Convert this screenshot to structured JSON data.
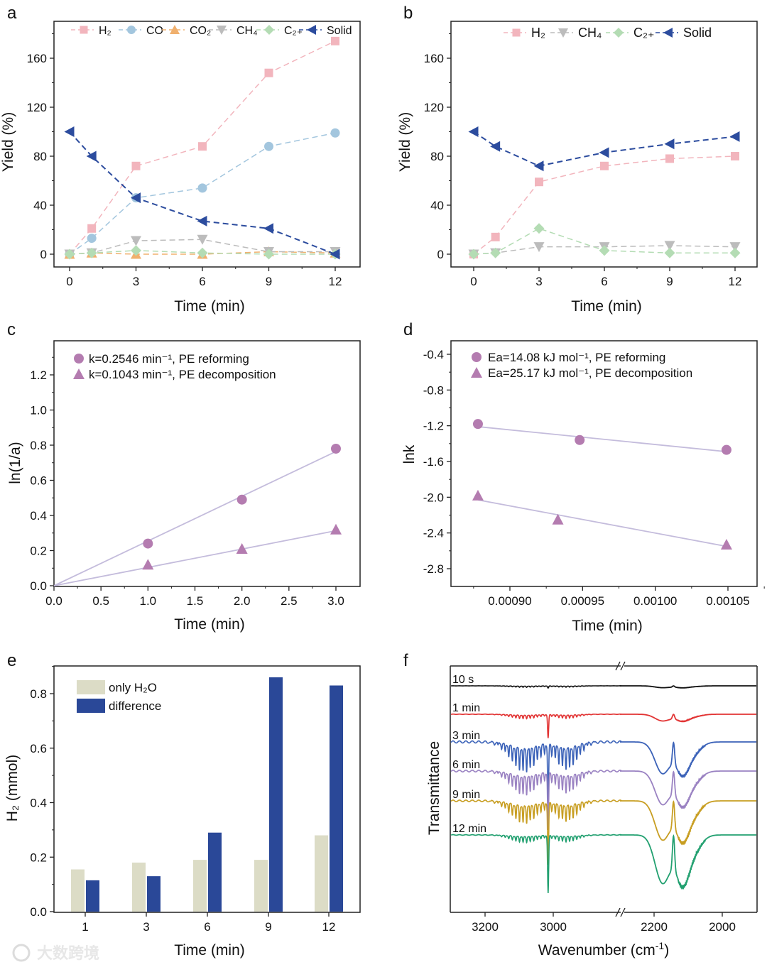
{
  "watermark": "大数跨境",
  "chart_data": [
    {
      "panel": "a",
      "type": "line",
      "xlabel": "Time (min)",
      "ylabel": "Yield (%)",
      "xlim": [
        -0.7,
        13.3
      ],
      "ylim": [
        -10,
        190
      ],
      "x_ticks": [
        0,
        3,
        6,
        9,
        12
      ],
      "x_tick_labels": [
        "0",
        "3",
        "6",
        "9",
        "12"
      ],
      "y_ticks": [
        0,
        40,
        80,
        120,
        160
      ],
      "y_tick_labels": [
        "0",
        "40",
        "80",
        "120",
        "160"
      ],
      "legend": "top",
      "x": [
        0,
        1,
        3,
        6,
        9,
        12
      ],
      "series": [
        {
          "name": "H₂",
          "marker": "square",
          "color": "#f2b5bd",
          "values": [
            0,
            21,
            72,
            88,
            148,
            174
          ]
        },
        {
          "name": "CO",
          "marker": "circle",
          "color": "#a3c6de",
          "values": [
            0,
            13,
            46,
            54,
            88,
            99
          ]
        },
        {
          "name": "CO₂",
          "marker": "triangle-up",
          "color": "#f0b06e",
          "values": [
            0,
            1,
            0,
            0,
            2,
            1
          ]
        },
        {
          "name": "CH₄",
          "marker": "triangle-down",
          "color": "#bcbcbc",
          "values": [
            0,
            1,
            11,
            12,
            2,
            2
          ]
        },
        {
          "name": "C₂₊",
          "marker": "diamond",
          "color": "#b4dcb4",
          "values": [
            0,
            1,
            3,
            1,
            0,
            0
          ]
        },
        {
          "name": "Solid",
          "marker": "triangle-left",
          "color": "#2c4c9e",
          "values": [
            100,
            80,
            46,
            27,
            21,
            0
          ]
        }
      ]
    },
    {
      "panel": "b",
      "type": "line",
      "xlabel": "Time (min)",
      "ylabel": "Yield (%)",
      "xlim": [
        -0.7,
        13.3
      ],
      "ylim": [
        -10,
        190
      ],
      "x_ticks": [
        0,
        3,
        6,
        9,
        12
      ],
      "x_tick_labels": [
        "0",
        "3",
        "6",
        "9",
        "12"
      ],
      "y_ticks": [
        0,
        40,
        80,
        120,
        160
      ],
      "y_tick_labels": [
        "0",
        "40",
        "80",
        "120",
        "160"
      ],
      "legend": "top",
      "x": [
        0,
        1,
        3,
        6,
        9,
        12
      ],
      "series": [
        {
          "name": "H₂",
          "marker": "square",
          "color": "#f2b5bd",
          "values": [
            0,
            14,
            59,
            72,
            78,
            80
          ]
        },
        {
          "name": "CH₄",
          "marker": "triangle-down",
          "color": "#bcbcbc",
          "values": [
            0,
            1,
            6,
            6,
            7,
            6
          ]
        },
        {
          "name": "C₂₊",
          "marker": "diamond",
          "color": "#b4dcb4",
          "values": [
            0,
            1,
            21,
            3,
            1,
            1
          ]
        },
        {
          "name": "Solid",
          "marker": "triangle-left",
          "color": "#2c4c9e",
          "values": [
            100,
            88,
            72,
            83,
            90,
            96
          ]
        }
      ]
    },
    {
      "panel": "c",
      "type": "scatter",
      "xlabel": "Time (min)",
      "ylabel": "ln(1/a)",
      "xlim": [
        0,
        3.25
      ],
      "ylim": [
        0,
        1.39
      ],
      "x_ticks": [
        0,
        0.5,
        1,
        1.5,
        2,
        2.5,
        3
      ],
      "x_tick_labels": [
        "0.0",
        "0.5",
        "1.0",
        "1.5",
        "2.0",
        "2.5",
        "3.0"
      ],
      "y_ticks": [
        0,
        0.2,
        0.4,
        0.6,
        0.8,
        1.0,
        1.2
      ],
      "y_tick_labels": [
        "0.0",
        "0.2",
        "0.4",
        "0.6",
        "0.8",
        "1.0",
        "1.2"
      ],
      "legend": "top-left",
      "series": [
        {
          "name": "k=0.2546 min⁻¹, PE reforming",
          "marker": "circle",
          "color": "#b47cb0",
          "x": [
            1,
            2,
            3
          ],
          "y": [
            0.24,
            0.49,
            0.78
          ],
          "fit": {
            "x": [
              0,
              3
            ],
            "y": [
              0,
              0.764
            ]
          }
        },
        {
          "name": "k=0.1043 min⁻¹, PE decomposition",
          "marker": "triangle-up",
          "color": "#b47cb0",
          "x": [
            1,
            2,
            3
          ],
          "y": [
            0.12,
            0.21,
            0.32
          ],
          "fit": {
            "x": [
              0,
              3
            ],
            "y": [
              0,
              0.313
            ]
          }
        }
      ],
      "fit_color": "#c4bcdc"
    },
    {
      "panel": "d",
      "type": "scatter",
      "xlabel": "Time (min)",
      "ylabel": "lnk",
      "xlim": [
        0.00085,
        0.001085
      ],
      "ylim": [
        -3.0,
        -0.25
      ],
      "x_ticks": [
        0.0009,
        0.00095,
        0.001,
        0.00105
      ],
      "x_tick_labels": [
        "0.00090",
        "0.00095",
        "0.00100",
        "0.00105"
      ],
      "y_ticks": [
        -0.4,
        -0.8,
        -1.2,
        -1.6,
        -2.0,
        -2.4,
        -2.8
      ],
      "y_tick_labels": [
        "-0.4",
        "-0.8",
        "-1.2",
        "-1.6",
        "-2.0",
        "-2.4",
        "-2.8"
      ],
      "legend": "top-left",
      "series": [
        {
          "name": "Ea=14.08 kJ mol⁻¹, PE reforming",
          "marker": "circle",
          "color": "#b47cb0",
          "x": [
            0.000878,
            0.000948,
            0.001049
          ],
          "y": [
            -1.18,
            -1.36,
            -1.47
          ],
          "fit": {
            "x": [
              0.000878,
              0.001049
            ],
            "y": [
              -1.21,
              -1.49
            ]
          }
        },
        {
          "name": "Ea=25.17 kJ mol⁻¹, PE decomposition",
          "marker": "triangle-up",
          "color": "#b47cb0",
          "x": [
            0.000878,
            0.000933,
            0.001049
          ],
          "y": [
            -1.98,
            -2.25,
            -2.53
          ],
          "fit": {
            "x": [
              0.000878,
              0.001049
            ],
            "y": [
              -2.03,
              -2.55
            ]
          }
        }
      ],
      "fit_color": "#c4bcdc"
    },
    {
      "panel": "e",
      "type": "bar",
      "xlabel": "Time (min)",
      "ylabel": "H₂ (mmol)",
      "ylim": [
        0,
        0.9
      ],
      "categories": [
        "1",
        "3",
        "6",
        "9",
        "12"
      ],
      "y_ticks": [
        0,
        0.2,
        0.4,
        0.6,
        0.8
      ],
      "y_tick_labels": [
        "0.0",
        "0.2",
        "0.4",
        "0.6",
        "0.8"
      ],
      "legend": "top-left",
      "series": [
        {
          "name": "only H₂O",
          "color": "#dcdcc6",
          "values": [
            0.155,
            0.18,
            0.19,
            0.19,
            0.28
          ]
        },
        {
          "name": "difference",
          "color": "#2a4898",
          "values": [
            0.115,
            0.13,
            0.29,
            0.86,
            0.83
          ]
        }
      ]
    },
    {
      "panel": "f",
      "type": "line",
      "xlabel": "Wavenumber (cm",
      "xlabel_sup": "-1",
      "xlabel_end": ")",
      "ylabel": "Transmittance",
      "xlim_segments": [
        [
          3300,
          2800
        ],
        [
          2300,
          1900
        ]
      ],
      "x_ticks": [
        3200,
        3000,
        2200,
        2000
      ],
      "x_tick_labels": [
        "3200",
        "3000",
        "2200",
        "2000"
      ],
      "series": [
        {
          "name": "10 s",
          "color": "#111111",
          "ch4_band": 0.05,
          "ch4_q": 0.03,
          "co_band": 0.05
        },
        {
          "name": "1 min",
          "color": "#e23434",
          "ch4_band": 0.15,
          "ch4_q": 0.4,
          "co_band": 0.18
        },
        {
          "name": "3 min",
          "color": "#3b62b8",
          "ch4_band": 1.0,
          "ch4_q": 0.9,
          "co_band": 0.85
        },
        {
          "name": "6 min",
          "color": "#9a82c2",
          "ch4_band": 0.8,
          "ch4_q": 0.9,
          "co_band": 0.9
        },
        {
          "name": "9 min",
          "color": "#c89e22",
          "ch4_band": 0.75,
          "ch4_q": 1.0,
          "co_band": 1.05
        },
        {
          "name": "12 min",
          "color": "#22a070",
          "ch4_band": 0.25,
          "ch4_q": 1.0,
          "co_band": 1.3
        }
      ]
    }
  ]
}
